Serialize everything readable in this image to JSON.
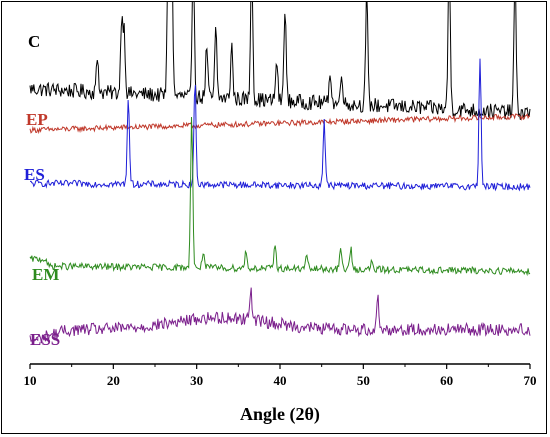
{
  "chart_data": {
    "type": "line",
    "title": "",
    "xlabel": "Angle (2θ)",
    "ylabel": "",
    "xlim": [
      10,
      70
    ],
    "x_ticks": [
      "10",
      "20",
      "30",
      "40",
      "50",
      "60",
      "70"
    ],
    "grid": false,
    "legend": "inline labels at left of each trace",
    "series": [
      {
        "name": "C",
        "color": "#000000",
        "baseline": 0.8,
        "peaks": [
          [
            18.1,
            0.1
          ],
          [
            21.0,
            0.22
          ],
          [
            21.3,
            0.18
          ],
          [
            26.6,
            0.45
          ],
          [
            27.0,
            0.45
          ],
          [
            29.6,
            0.4
          ],
          [
            31.2,
            0.15
          ],
          [
            32.3,
            0.2
          ],
          [
            34.2,
            0.16
          ],
          [
            36.6,
            0.42
          ],
          [
            39.6,
            0.12
          ],
          [
            40.6,
            0.28
          ],
          [
            46.0,
            0.1
          ],
          [
            47.4,
            0.1
          ],
          [
            50.4,
            0.33
          ],
          [
            60.3,
            0.45
          ],
          [
            68.2,
            0.4
          ]
        ]
      },
      {
        "name": "EP",
        "color": "#c0392b",
        "baseline": 0.68,
        "peaks": []
      },
      {
        "name": "ES",
        "color": "#1f1fd8",
        "baseline": 0.525,
        "peaks": [
          [
            21.8,
            0.26
          ],
          [
            29.8,
            0.3
          ],
          [
            45.3,
            0.19
          ],
          [
            64.0,
            0.38
          ]
        ]
      },
      {
        "name": "EM",
        "color": "#2e8b1f",
        "baseline": 0.285,
        "peaks": [
          [
            29.4,
            0.45
          ],
          [
            30.8,
            0.05
          ],
          [
            35.9,
            0.05
          ],
          [
            39.4,
            0.07
          ],
          [
            43.2,
            0.04
          ],
          [
            47.3,
            0.06
          ],
          [
            48.5,
            0.06
          ],
          [
            51.0,
            0.02
          ]
        ]
      },
      {
        "name": "ESS",
        "color": "#7b1f8c",
        "baseline": 0.1,
        "peaks": [
          [
            36.5,
            0.1
          ],
          [
            51.7,
            0.1
          ]
        ]
      }
    ]
  }
}
